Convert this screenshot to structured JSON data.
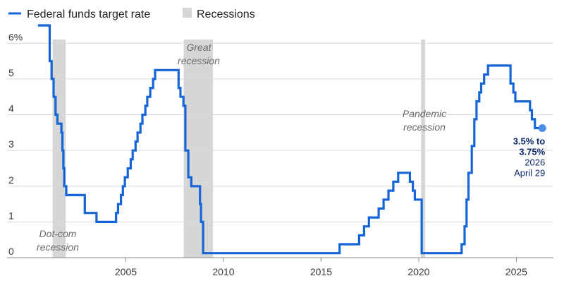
{
  "chart_data": {
    "type": "line",
    "title": "",
    "xlabel": "",
    "ylabel": "",
    "xlim": [
      2000.0,
      2026.9
    ],
    "ylim": [
      0,
      6.5
    ],
    "x_ticks": [
      2005,
      2010,
      2015,
      2020,
      2025
    ],
    "x_tick_labels": [
      "2005",
      "2010",
      "2015",
      "2020",
      "2025"
    ],
    "y_ticks": [
      0,
      1,
      2,
      3,
      4,
      5,
      6
    ],
    "y_tick_labels": [
      "0",
      "1",
      "2",
      "3",
      "4",
      "5",
      "6%"
    ],
    "grid": "horizontal",
    "legend": {
      "placement": "top-left",
      "entries": [
        {
          "label": "Federal funds target rate",
          "color": "#1565d8",
          "kind": "line"
        },
        {
          "label": "Recessions",
          "color": "#d6d6d6",
          "kind": "box"
        }
      ]
    },
    "recessions": [
      {
        "label_lines": [
          "Dot-com",
          "recession"
        ],
        "start": 2001.25,
        "end": 2001.92
      },
      {
        "label_lines": [
          "Great",
          "recession"
        ],
        "start": 2007.96,
        "end": 2009.46
      },
      {
        "label_lines": [
          "Pandemic",
          "recession"
        ],
        "start": 2020.12,
        "end": 2020.33
      }
    ],
    "series": [
      {
        "name": "Federal funds target rate",
        "color": "#1565d8",
        "points": [
          [
            2000.5,
            6.5
          ],
          [
            2001.0,
            6.5
          ],
          [
            2001.1,
            5.5
          ],
          [
            2001.2,
            5.0
          ],
          [
            2001.3,
            4.5
          ],
          [
            2001.4,
            4.0
          ],
          [
            2001.5,
            3.75
          ],
          [
            2001.7,
            3.5
          ],
          [
            2001.75,
            3.0
          ],
          [
            2001.8,
            2.5
          ],
          [
            2001.85,
            2.0
          ],
          [
            2001.95,
            1.75
          ],
          [
            2002.9,
            1.25
          ],
          [
            2003.5,
            1.0
          ],
          [
            2004.5,
            1.25
          ],
          [
            2004.6,
            1.5
          ],
          [
            2004.75,
            1.75
          ],
          [
            2004.85,
            2.0
          ],
          [
            2004.95,
            2.25
          ],
          [
            2005.1,
            2.5
          ],
          [
            2005.25,
            2.75
          ],
          [
            2005.35,
            3.0
          ],
          [
            2005.5,
            3.25
          ],
          [
            2005.6,
            3.5
          ],
          [
            2005.75,
            3.75
          ],
          [
            2005.85,
            4.0
          ],
          [
            2006.0,
            4.25
          ],
          [
            2006.1,
            4.5
          ],
          [
            2006.25,
            4.75
          ],
          [
            2006.4,
            5.0
          ],
          [
            2006.5,
            5.25
          ],
          [
            2007.7,
            4.75
          ],
          [
            2007.8,
            4.5
          ],
          [
            2007.95,
            4.25
          ],
          [
            2008.05,
            3.0
          ],
          [
            2008.2,
            2.25
          ],
          [
            2008.35,
            2.0
          ],
          [
            2008.8,
            1.5
          ],
          [
            2008.85,
            1.0
          ],
          [
            2008.96,
            0.125
          ],
          [
            2015.95,
            0.375
          ],
          [
            2016.95,
            0.625
          ],
          [
            2017.2,
            0.875
          ],
          [
            2017.45,
            1.125
          ],
          [
            2017.95,
            1.375
          ],
          [
            2018.2,
            1.625
          ],
          [
            2018.45,
            1.875
          ],
          [
            2018.7,
            2.125
          ],
          [
            2018.95,
            2.375
          ],
          [
            2019.55,
            2.125
          ],
          [
            2019.7,
            1.875
          ],
          [
            2019.8,
            1.625
          ],
          [
            2020.15,
            0.125
          ],
          [
            2022.2,
            0.375
          ],
          [
            2022.35,
            0.875
          ],
          [
            2022.45,
            1.625
          ],
          [
            2022.55,
            2.375
          ],
          [
            2022.72,
            3.125
          ],
          [
            2022.85,
            3.875
          ],
          [
            2022.96,
            4.375
          ],
          [
            2023.1,
            4.625
          ],
          [
            2023.2,
            4.875
          ],
          [
            2023.35,
            5.125
          ],
          [
            2023.55,
            5.375
          ],
          [
            2024.7,
            4.875
          ],
          [
            2024.85,
            4.625
          ],
          [
            2024.95,
            4.375
          ],
          [
            2025.7,
            4.125
          ],
          [
            2025.8,
            3.875
          ],
          [
            2025.95,
            3.625
          ],
          [
            2026.33,
            3.625
          ]
        ]
      }
    ],
    "annotation": {
      "lines_bold": [
        "3.5% to",
        "3.75%"
      ],
      "lines": [
        "2026",
        "April 29"
      ],
      "x": 2026.33,
      "y": 3.625
    }
  }
}
